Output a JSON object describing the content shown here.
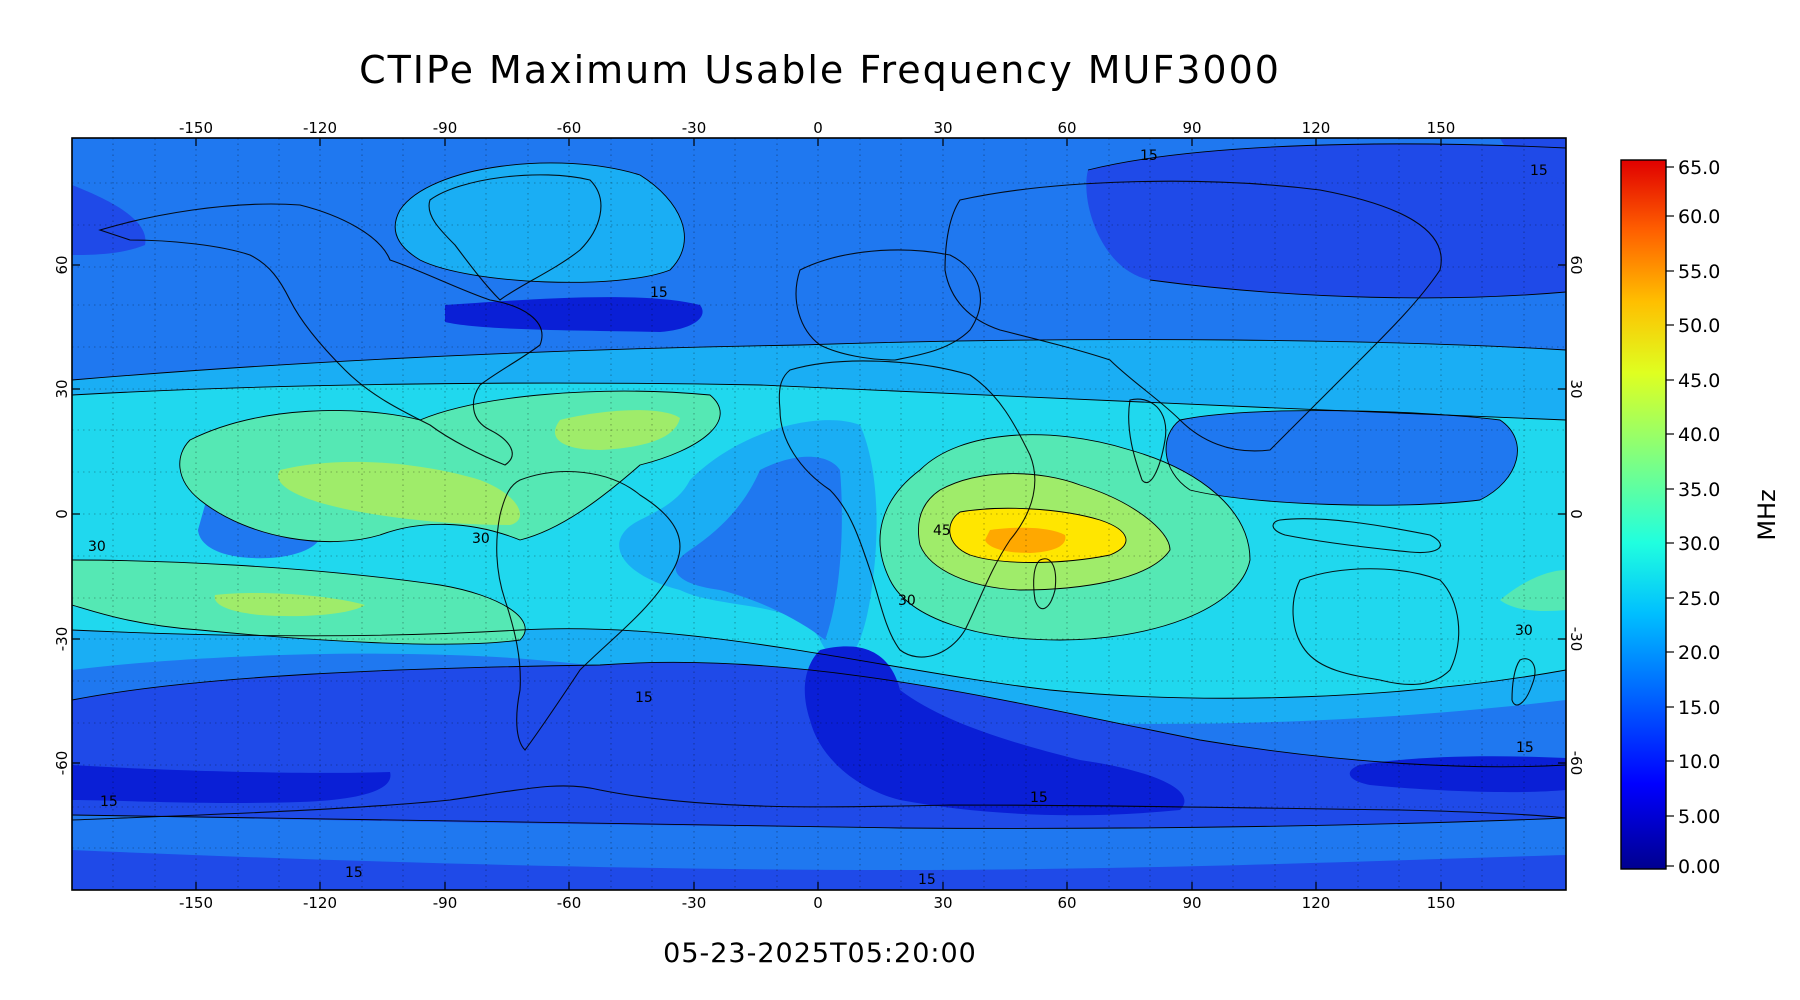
{
  "title": "CTIPe Maximum Usable Frequency MUF3000",
  "timestamp": "05-23-2025T05:20:00",
  "map": {
    "lon_ticks": [
      "-150",
      "-120",
      "-90",
      "-60",
      "-30",
      "0",
      "30",
      "60",
      "90",
      "120",
      "150"
    ],
    "lat_ticks": [
      "60",
      "30",
      "0",
      "-30",
      "-60"
    ],
    "contour_labels": [
      "15",
      "15",
      "15",
      "15",
      "15",
      "15",
      "15",
      "15",
      "30",
      "30",
      "30",
      "30",
      "45",
      "15"
    ]
  },
  "colorbar": {
    "unit": "MHz",
    "ticks": [
      "65.0",
      "60.0",
      "55.0",
      "50.0",
      "45.0",
      "40.0",
      "35.0",
      "30.0",
      "25.0",
      "20.0",
      "15.0",
      "10.0",
      "5.00",
      "0.00"
    ],
    "colors": [
      "#00008f",
      "#0000ff",
      "#0060ff",
      "#00bfff",
      "#20ffdf",
      "#80ff80",
      "#dfff20",
      "#ffbf00",
      "#ff6000",
      "#ff0000",
      "#df0000"
    ]
  },
  "palette": {
    "level_5_10": "#0a1fd6",
    "level_10_15": "#1f4ae8",
    "level_15_20": "#1f78f0",
    "level_20_25": "#1aaef4",
    "level_25_30": "#20d8ee",
    "level_30_35": "#55e8b4",
    "level_35_40": "#9fec6a",
    "level_40_45": "#ffe600",
    "level_45_50": "#ffa800"
  }
}
